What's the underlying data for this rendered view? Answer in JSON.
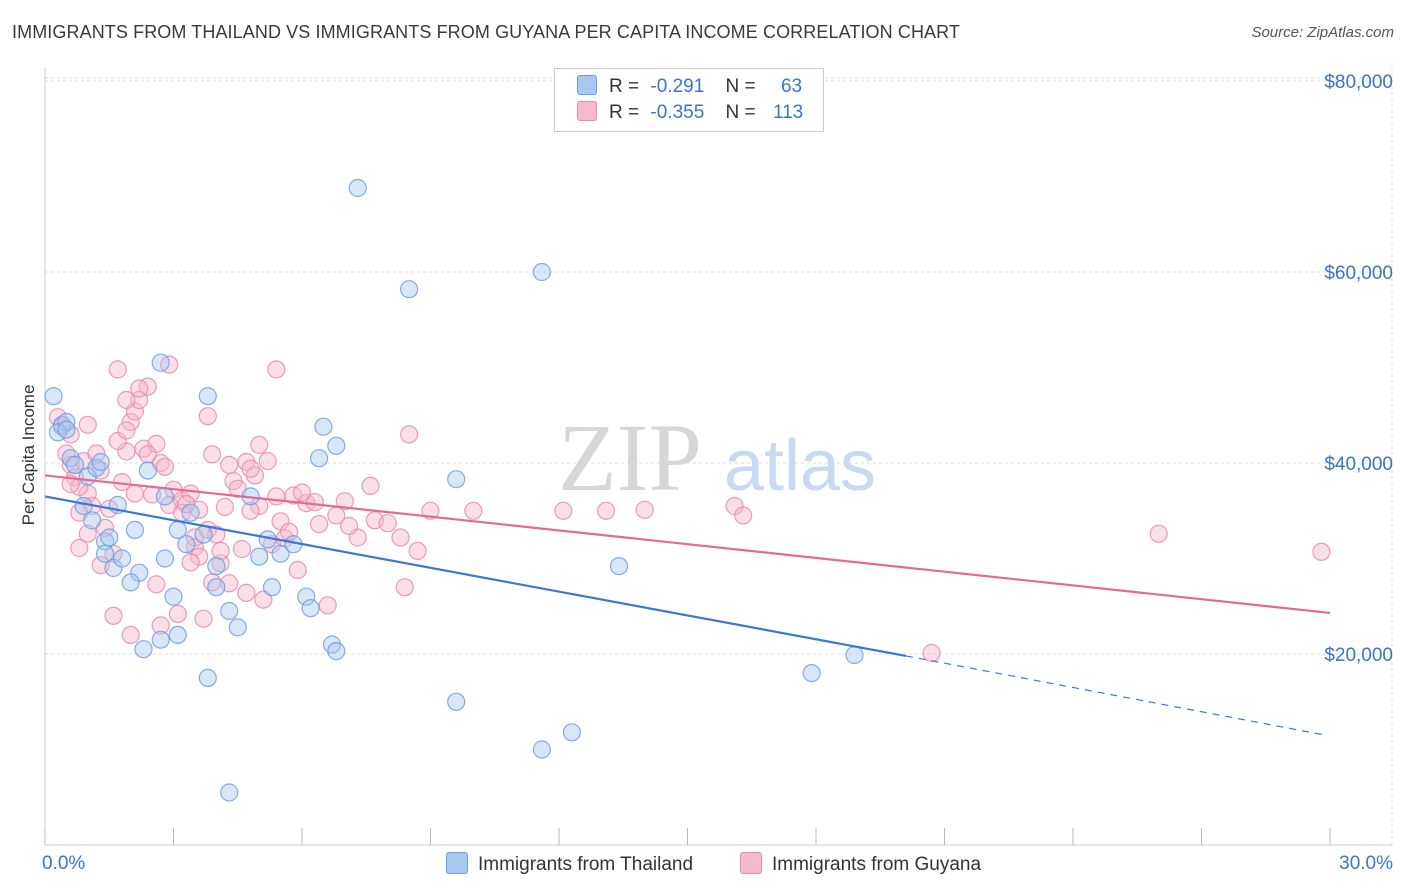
{
  "header": {
    "title": "IMMIGRANTS FROM THAILAND VS IMMIGRANTS FROM GUYANA PER CAPITA INCOME CORRELATION CHART",
    "source": "Source: ZipAtlas.com"
  },
  "watermark": {
    "part1": "ZIP",
    "part2": "atlas"
  },
  "legend": {
    "items": [
      {
        "r_label": "R =",
        "r_value": "-0.291",
        "n_label": "N =",
        "n_value": "63"
      },
      {
        "r_label": "R =",
        "r_value": "-0.355",
        "n_label": "N =",
        "n_value": "113"
      }
    ]
  },
  "bottom_legend": {
    "thailand": "Immigrants from Thailand",
    "guyana": "Immigrants from Guyana"
  },
  "colors": {
    "thailand_fill": "#a9c8f0",
    "thailand_stroke": "#6d9fe0",
    "thailand_line": "#3a78d4",
    "guyana_fill": "#f5b8cc",
    "guyana_stroke": "#e98bab",
    "guyana_line": "#e36a94",
    "axis_label": "#3b74c7",
    "grid": "#dddddd"
  },
  "chart_data": {
    "type": "scatter",
    "title": "IMMIGRANTS FROM THAILAND VS IMMIGRANTS FROM GUYANA PER CAPITA INCOME CORRELATION CHART",
    "ylabel": "Per Capita Income",
    "xlabel": "",
    "xlim": [
      0,
      30
    ],
    "ylim": [
      0,
      82000
    ],
    "x_tick_labels": [
      "0.0%",
      "30.0%"
    ],
    "y_ticks": [
      20000,
      40000,
      60000,
      80000
    ],
    "y_tick_labels": [
      "$20,000",
      "$40,000",
      "$60,000",
      "$80,000"
    ],
    "grid": true,
    "legend_position": "top-center",
    "series": [
      {
        "name": "Immigrants from Thailand",
        "r": -0.291,
        "n": 63,
        "trend": {
          "x0": 0,
          "y0": 36500,
          "x1": 20.1,
          "y1": 19800,
          "dashed_to_x": 29.9,
          "dashed_to_y": 11500
        },
        "points": [
          [
            0.2,
            47000
          ],
          [
            0.4,
            44000
          ],
          [
            0.5,
            44300
          ],
          [
            0.3,
            43200
          ],
          [
            0.6,
            40500
          ],
          [
            0.7,
            39800
          ],
          [
            1.0,
            38600
          ],
          [
            1.2,
            39500
          ],
          [
            0.9,
            35500
          ],
          [
            1.1,
            34000
          ],
          [
            1.4,
            31800
          ],
          [
            1.5,
            32200
          ],
          [
            1.4,
            30500
          ],
          [
            1.6,
            29000
          ],
          [
            2.1,
            33000
          ],
          [
            1.8,
            30000
          ],
          [
            2.2,
            28500
          ],
          [
            2.0,
            27500
          ],
          [
            2.8,
            36500
          ],
          [
            3.1,
            33000
          ],
          [
            3.3,
            31500
          ],
          [
            2.8,
            30000
          ],
          [
            3.0,
            26000
          ],
          [
            2.3,
            20500
          ],
          [
            2.7,
            21500
          ],
          [
            3.1,
            22000
          ],
          [
            3.7,
            32500
          ],
          [
            4.0,
            29200
          ],
          [
            4.3,
            24500
          ],
          [
            4.5,
            22800
          ],
          [
            4.0,
            27000
          ],
          [
            3.8,
            17500
          ],
          [
            3.8,
            47000
          ],
          [
            2.7,
            50500
          ],
          [
            5.2,
            32000
          ],
          [
            5.5,
            30500
          ],
          [
            5.3,
            27000
          ],
          [
            5.8,
            31500
          ],
          [
            6.1,
            26000
          ],
          [
            6.2,
            24800
          ],
          [
            6.5,
            43800
          ],
          [
            6.4,
            40500
          ],
          [
            6.8,
            41800
          ],
          [
            6.7,
            21000
          ],
          [
            6.8,
            20300
          ],
          [
            7.3,
            68800
          ],
          [
            8.5,
            58200
          ],
          [
            9.6,
            38300
          ],
          [
            9.6,
            15000
          ],
          [
            11.6,
            60000
          ],
          [
            11.6,
            10000
          ],
          [
            12.3,
            11800
          ],
          [
            13.4,
            29200
          ],
          [
            17.9,
            18000
          ],
          [
            18.9,
            19900
          ],
          [
            4.3,
            5500
          ],
          [
            0.5,
            43500
          ],
          [
            1.3,
            40100
          ],
          [
            3.4,
            34800
          ],
          [
            4.8,
            36500
          ],
          [
            5.0,
            30200
          ],
          [
            2.4,
            39200
          ],
          [
            1.7,
            35600
          ]
        ]
      },
      {
        "name": "Immigrants from Guyana",
        "r": -0.355,
        "n": 113,
        "trend": {
          "x0": 0,
          "y0": 38700,
          "x1": 30,
          "y1": 24300
        },
        "points": [
          [
            0.3,
            44800
          ],
          [
            0.4,
            43800
          ],
          [
            0.6,
            43000
          ],
          [
            0.5,
            41000
          ],
          [
            0.6,
            39800
          ],
          [
            0.7,
            38500
          ],
          [
            0.9,
            40200
          ],
          [
            1.0,
            36800
          ],
          [
            0.8,
            37500
          ],
          [
            0.6,
            37800
          ],
          [
            1.0,
            44000
          ],
          [
            1.2,
            41000
          ],
          [
            1.3,
            39200
          ],
          [
            1.1,
            35500
          ],
          [
            1.4,
            33200
          ],
          [
            1.6,
            30500
          ],
          [
            1.8,
            38000
          ],
          [
            1.9,
            41200
          ],
          [
            1.7,
            42300
          ],
          [
            2.0,
            44300
          ],
          [
            2.1,
            45400
          ],
          [
            2.2,
            46600
          ],
          [
            2.3,
            41500
          ],
          [
            2.6,
            42000
          ],
          [
            2.7,
            40000
          ],
          [
            2.8,
            39600
          ],
          [
            2.5,
            36700
          ],
          [
            2.9,
            35600
          ],
          [
            3.0,
            37200
          ],
          [
            3.2,
            36100
          ],
          [
            3.2,
            34800
          ],
          [
            3.4,
            36800
          ],
          [
            3.6,
            35100
          ],
          [
            3.5,
            31200
          ],
          [
            3.6,
            30200
          ],
          [
            3.8,
            33000
          ],
          [
            4.0,
            32500
          ],
          [
            4.1,
            29500
          ],
          [
            4.3,
            39800
          ],
          [
            4.4,
            38100
          ],
          [
            4.2,
            35400
          ],
          [
            4.5,
            37300
          ],
          [
            4.7,
            40100
          ],
          [
            4.9,
            38700
          ],
          [
            5.0,
            35500
          ],
          [
            5.2,
            40200
          ],
          [
            5.4,
            36500
          ],
          [
            5.5,
            33900
          ],
          [
            5.8,
            36600
          ],
          [
            6.1,
            35800
          ],
          [
            6.4,
            33600
          ],
          [
            6.8,
            34500
          ],
          [
            7.0,
            36000
          ],
          [
            7.3,
            32200
          ],
          [
            7.6,
            37600
          ],
          [
            7.7,
            34000
          ],
          [
            8.0,
            33700
          ],
          [
            8.3,
            32200
          ],
          [
            8.4,
            27000
          ],
          [
            8.5,
            43000
          ],
          [
            8.7,
            30800
          ],
          [
            9.0,
            35000
          ],
          [
            10.0,
            35000
          ],
          [
            12.1,
            35000
          ],
          [
            13.1,
            35000
          ],
          [
            14.0,
            35100
          ],
          [
            16.1,
            35500
          ],
          [
            16.3,
            34500
          ],
          [
            20.7,
            20100
          ],
          [
            26.0,
            32600
          ],
          [
            29.8,
            30700
          ],
          [
            5.4,
            49800
          ],
          [
            2.9,
            50300
          ],
          [
            2.4,
            48000
          ],
          [
            1.7,
            49800
          ],
          [
            1.9,
            46600
          ],
          [
            2.2,
            47800
          ],
          [
            3.8,
            44900
          ],
          [
            5.0,
            41900
          ],
          [
            0.8,
            31100
          ],
          [
            1.3,
            29300
          ],
          [
            1.6,
            24000
          ],
          [
            2.0,
            22000
          ],
          [
            2.7,
            23000
          ],
          [
            3.1,
            24200
          ],
          [
            3.7,
            23700
          ],
          [
            3.9,
            27500
          ],
          [
            4.3,
            27400
          ],
          [
            4.7,
            26400
          ],
          [
            5.1,
            25700
          ],
          [
            5.3,
            31500
          ],
          [
            5.6,
            32100
          ],
          [
            5.9,
            28800
          ],
          [
            6.6,
            25100
          ],
          [
            3.4,
            29600
          ],
          [
            2.6,
            27300
          ],
          [
            4.8,
            35000
          ],
          [
            3.3,
            35700
          ],
          [
            2.1,
            36800
          ],
          [
            1.5,
            35200
          ],
          [
            4.1,
            30800
          ],
          [
            1.9,
            43400
          ],
          [
            3.5,
            32200
          ],
          [
            4.6,
            31000
          ],
          [
            6.3,
            35900
          ],
          [
            7.1,
            33400
          ],
          [
            1.0,
            32600
          ],
          [
            0.8,
            34800
          ],
          [
            3.9,
            40900
          ],
          [
            4.8,
            39400
          ],
          [
            5.7,
            32800
          ],
          [
            6.0,
            36900
          ],
          [
            2.4,
            40900
          ]
        ]
      }
    ]
  }
}
